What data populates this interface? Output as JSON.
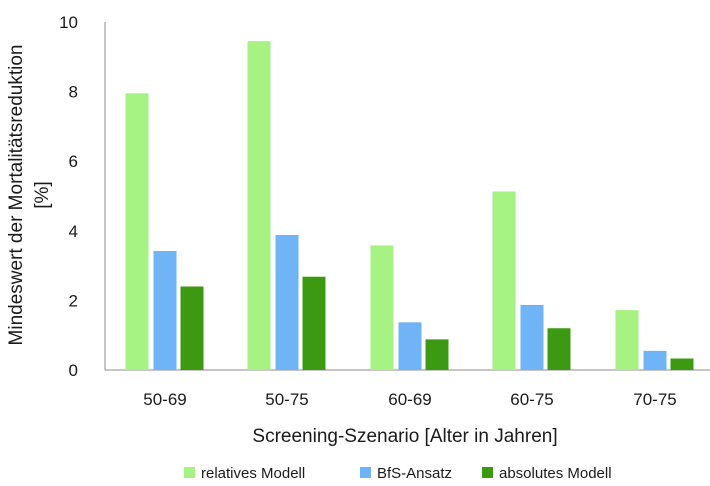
{
  "chart_data": {
    "type": "bar",
    "categories": [
      "50-69",
      "50-75",
      "60-69",
      "60-75",
      "70-75"
    ],
    "series": [
      {
        "name": "relatives Modell",
        "values": [
          7.95,
          9.45,
          3.58,
          5.13,
          1.72
        ],
        "color": "#a6f283"
      },
      {
        "name": "BfS-Ansatz",
        "values": [
          3.42,
          3.88,
          1.37,
          1.87,
          0.55
        ],
        "color": "#6fb4f6"
      },
      {
        "name": "absolutes Modell",
        "values": [
          2.4,
          2.68,
          0.88,
          1.2,
          0.33
        ],
        "color": "#3c9a12"
      }
    ],
    "xlabel": "Screening-Szenario [Alter in Jahren]",
    "ylabel_line1": "Mindeswert der Mortalitätsreduktion",
    "ylabel_line2": "[%]",
    "ylim": [
      0,
      10
    ],
    "yticks": [
      "0",
      "2",
      "4",
      "6",
      "8",
      "10"
    ],
    "grid": false,
    "legend_position": "bottom"
  }
}
